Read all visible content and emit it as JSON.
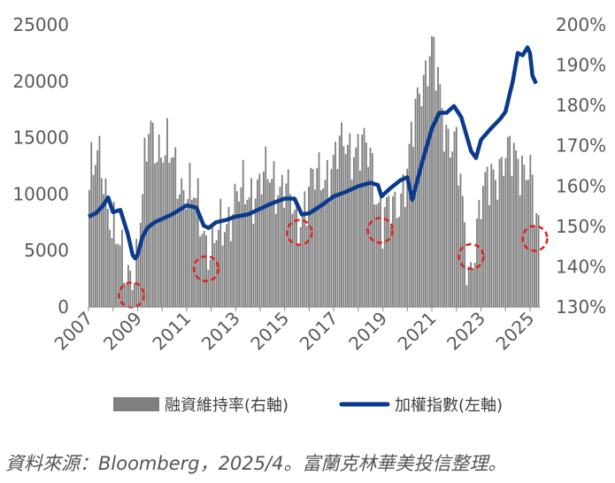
{
  "colors": {
    "bars": "#7f7f7f",
    "line": "#0a3a8c",
    "circles": "#e02020",
    "axis": "#8c8c8c",
    "text": "#595959"
  },
  "source_note": "資料來源：Bloomberg，2025/4。富蘭克林華美投信整理。",
  "chart_data": {
    "type": "bar+line",
    "legend_position": "bottom",
    "grid": false,
    "left_axis": {
      "ticks": [
        "0",
        "5000",
        "10000",
        "15000",
        "20000",
        "25000"
      ],
      "ylim": [
        0,
        25000
      ]
    },
    "right_axis": {
      "ticks": [
        "130%",
        "140%",
        "150%",
        "160%",
        "170%",
        "180%",
        "190%",
        "200%"
      ],
      "ylim": [
        130,
        200
      ]
    },
    "x_ticks": [
      "2007",
      "2009",
      "2011",
      "2013",
      "2015",
      "2017",
      "2019",
      "2021",
      "2023",
      "2025"
    ],
    "xlim": [
      2007.0,
      2025.4
    ],
    "series": [
      {
        "name": "融資維持率(右軸)",
        "type": "bar",
        "axis": "right",
        "x": [
          2007.0,
          2007.5,
          2008.0,
          2008.5,
          2009.0,
          2009.5,
          2010.0,
          2010.5,
          2011.0,
          2011.5,
          2012.0,
          2012.5,
          2013.0,
          2013.5,
          2014.0,
          2014.5,
          2015.0,
          2015.5,
          2016.0,
          2016.5,
          2017.0,
          2017.5,
          2018.0,
          2018.5,
          2019.0,
          2019.5,
          2020.0,
          2020.5,
          2021.0,
          2021.5,
          2022.0,
          2022.5,
          2023.0,
          2023.5,
          2024.0,
          2024.5,
          2025.0,
          2025.25
        ],
        "y": [
          161,
          167,
          150,
          138,
          142,
          176,
          168,
          166,
          158,
          155,
          143,
          150,
          157,
          158,
          161,
          162,
          160,
          151,
          159,
          163,
          165,
          172,
          168,
          169,
          150,
          156,
          162,
          185,
          194,
          176,
          170,
          138,
          155,
          164,
          166,
          168,
          163,
          150
        ]
      },
      {
        "name": "加權指數(左軸)",
        "type": "line",
        "axis": "left",
        "x": [
          2007.0,
          2007.3,
          2007.6,
          2007.8,
          2008.0,
          2008.3,
          2008.6,
          2008.8,
          2008.9,
          2009.0,
          2009.2,
          2009.4,
          2009.7,
          2010.0,
          2010.4,
          2010.7,
          2011.0,
          2011.4,
          2011.7,
          2011.9,
          2012.2,
          2012.6,
          2013.0,
          2013.5,
          2014.0,
          2014.5,
          2015.0,
          2015.4,
          2015.7,
          2016.0,
          2016.5,
          2017.0,
          2017.5,
          2018.0,
          2018.5,
          2018.8,
          2018.95,
          2019.3,
          2019.7,
          2020.0,
          2020.2,
          2020.6,
          2021.0,
          2021.3,
          2021.6,
          2021.9,
          2022.2,
          2022.6,
          2022.8,
          2023.0,
          2023.4,
          2023.8,
          2024.0,
          2024.3,
          2024.5,
          2024.7,
          2024.9,
          2025.0,
          2025.1,
          2025.25
        ],
        "y": [
          8000,
          8300,
          9000,
          9700,
          8400,
          8600,
          6500,
          4600,
          4300,
          4600,
          6200,
          7000,
          7500,
          7800,
          8200,
          8600,
          9000,
          8800,
          7200,
          7000,
          7500,
          7700,
          8000,
          8200,
          8700,
          9200,
          9600,
          9600,
          8200,
          8300,
          9000,
          9800,
          10200,
          10700,
          11000,
          10800,
          9800,
          10500,
          11200,
          11500,
          9500,
          12800,
          15800,
          17200,
          17200,
          17800,
          16800,
          13800,
          13200,
          14800,
          15800,
          16700,
          17300,
          20000,
          22500,
          22300,
          23000,
          22500,
          20500,
          19800
        ]
      }
    ]
  }
}
